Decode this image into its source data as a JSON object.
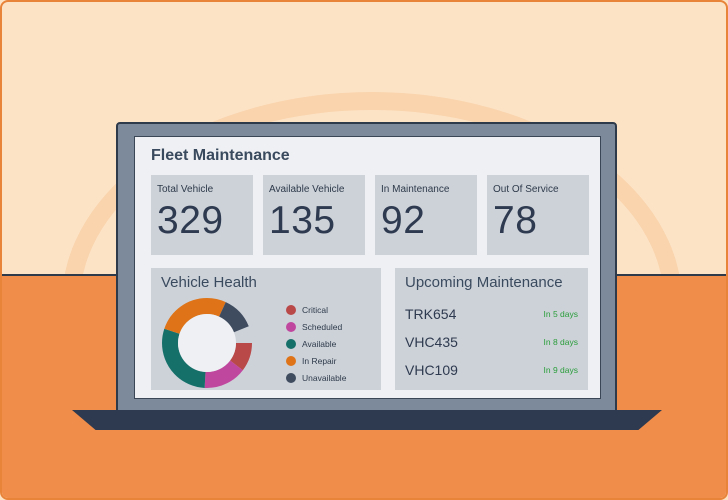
{
  "dashboard": {
    "title": "Fleet Maintenance"
  },
  "stats": [
    {
      "label": "Total Vehicle",
      "value": "329"
    },
    {
      "label": "Available Vehicle",
      "value": "135"
    },
    {
      "label": "In Maintenance",
      "value": "92"
    },
    {
      "label": "Out Of Service",
      "value": "78"
    }
  ],
  "vehicle_health": {
    "title": "Vehicle Health",
    "legend": [
      {
        "label": "Critical",
        "color": "#b94848"
      },
      {
        "label": "Scheduled",
        "color": "#c0479e"
      },
      {
        "label": "Available",
        "color": "#16706a"
      },
      {
        "label": "In Repair",
        "color": "#de7417"
      },
      {
        "label": "Unavailable",
        "color": "#3f4c5f"
      }
    ]
  },
  "upcoming": {
    "title": "Upcoming Maintenance",
    "items": [
      {
        "id": "TRK654",
        "due": "In 5 days"
      },
      {
        "id": "VHC435",
        "due": "In 8 days"
      },
      {
        "id": "VHC109",
        "due": "In 9 days"
      }
    ]
  }
}
